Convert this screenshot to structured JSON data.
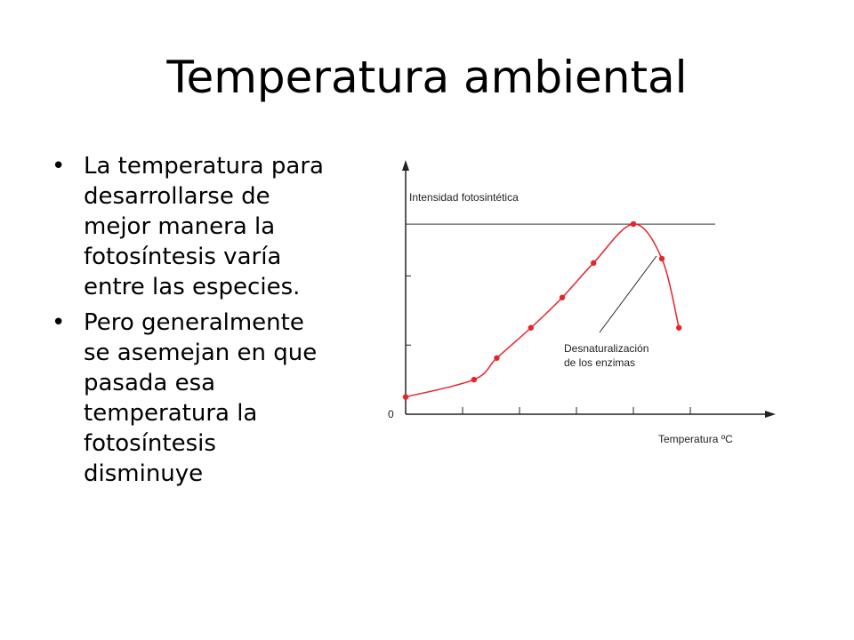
{
  "slide": {
    "title": "Temperatura ambiental",
    "bullets": [
      "La temperatura para desarrollarse de mejor manera la fotosíntesis varía entre las especies.",
      "Pero generalmente se asemejan en que pasada esa temperatura la fotosíntesis disminuye"
    ],
    "bullet_glyph": "•"
  },
  "chart_data": {
    "type": "line",
    "ylabel": "Intensidad fotosintética",
    "xlabel": "Temperatura ºC",
    "origin_label": "0",
    "annotation": "Desnaturalización de los enzimas",
    "annotation_lines": [
      "Desnaturalización",
      "de los enzimas"
    ],
    "line_color": "#e8232a",
    "x": [
      0,
      1.2,
      1.6,
      2.2,
      2.75,
      3.3,
      4.0,
      4.5,
      4.8
    ],
    "y": [
      0.04,
      0.08,
      0.13,
      0.2,
      0.27,
      0.35,
      0.44,
      0.36,
      0.2
    ],
    "xlim": [
      0,
      6.5
    ],
    "ylim": [
      0,
      0.58
    ],
    "x_ticks": [
      1,
      2,
      3,
      4,
      5
    ],
    "y_ticks": [
      0.16,
      0.32
    ],
    "max_line": 0.44
  }
}
